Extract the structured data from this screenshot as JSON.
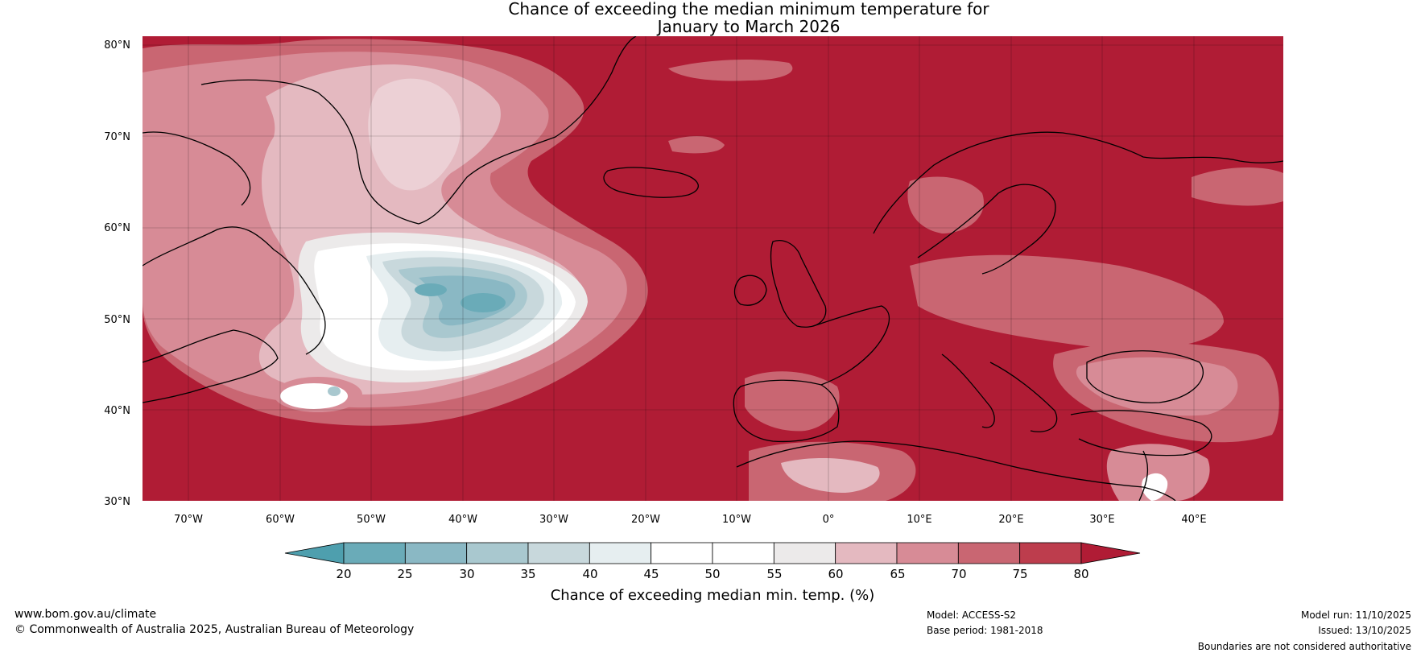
{
  "title_line1": "Chance of exceeding the median minimum temperature for",
  "title_line2": "January to March 2026",
  "lat_labels": [
    "80°N",
    "70°N",
    "60°N",
    "50°N",
    "40°N",
    "30°N"
  ],
  "lon_labels": [
    "70°W",
    "60°W",
    "50°W",
    "40°W",
    "30°W",
    "20°W",
    "10°W",
    "0°",
    "10°E",
    "20°E",
    "30°E",
    "40°E"
  ],
  "colorbar": {
    "ticks": [
      "20",
      "25",
      "30",
      "35",
      "40",
      "45",
      "50",
      "55",
      "60",
      "65",
      "70",
      "75",
      "80"
    ],
    "low_extend_color": "#4e9fae",
    "high_extend_color": "#b01c35",
    "colors": [
      "#6aabb8",
      "#8ab8c4",
      "#a9c8cf",
      "#c8d8dc",
      "#e6eef0",
      "#ffffff",
      "#ffffff",
      "#eceaea",
      "#e4b9c0",
      "#d78b96",
      "#c96672",
      "#bd3d4d"
    ],
    "label": "Chance of exceeding median min. temp. (%)"
  },
  "colors": {
    "high": "#b01c35",
    "mid_high": "#c96672",
    "light_pink": "#e4b9c0",
    "white": "#ffffff",
    "pale_blue": "#c8d8dc",
    "blue": "#8ab8c4",
    "teal": "#6aabb8"
  },
  "footer": {
    "website": "www.bom.gov.au/climate",
    "copyright": "© Commonwealth of Australia 2025, Australian Bureau of Meteorology",
    "model": "Model: ACCESS-S2",
    "base_period": "Base period: 1981-2018",
    "model_run": "Model run: 11/10/2025",
    "issued": "Issued: 13/10/2025",
    "disclaimer": "Boundaries are not considered authoritative"
  }
}
